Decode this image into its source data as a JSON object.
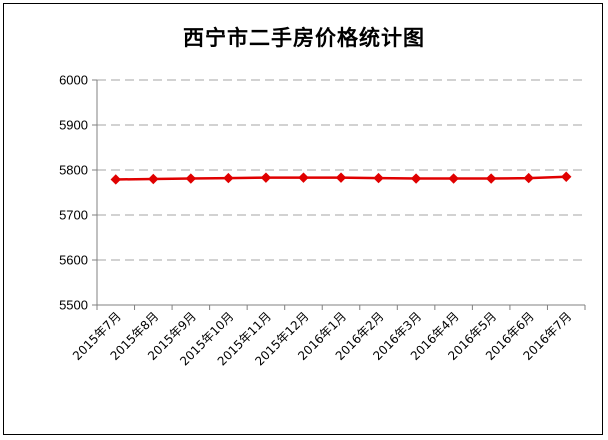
{
  "chart_data": {
    "type": "line",
    "title": "西宁市二手房价格统计图",
    "xlabel": "",
    "ylabel": "",
    "categories": [
      "2015年7月",
      "2015年8月",
      "2015年9月",
      "2015年10月",
      "2015年11月",
      "2015年12月",
      "2016年1月",
      "2016年2月",
      "2016年3月",
      "2016年4月",
      "2016年5月",
      "2016年6月",
      "2016年7月"
    ],
    "series": [
      {
        "values": [
          5779,
          5780,
          5781,
          5782,
          5783,
          5783,
          5783,
          5782,
          5781,
          5781,
          5781,
          5782,
          5785
        ],
        "color": "#e00000"
      }
    ],
    "ylim": [
      5500,
      6000
    ],
    "yticks": [
      5500,
      5600,
      5700,
      5800,
      5900,
      6000
    ],
    "grid": "horizontal dashed",
    "legend": "none",
    "marker": "diamond"
  }
}
